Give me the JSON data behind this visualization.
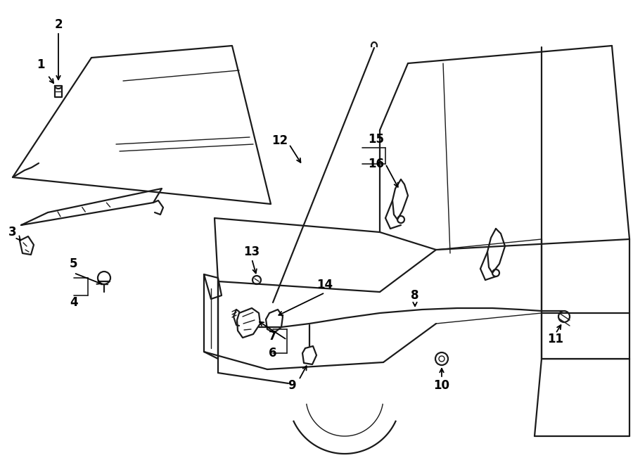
{
  "bg_color": "#ffffff",
  "line_color": "#1a1a1a",
  "text_color": "#000000",
  "lw_main": 1.6,
  "lw_thin": 1.0,
  "lw_thick": 2.0,
  "label_fontsize": 12
}
